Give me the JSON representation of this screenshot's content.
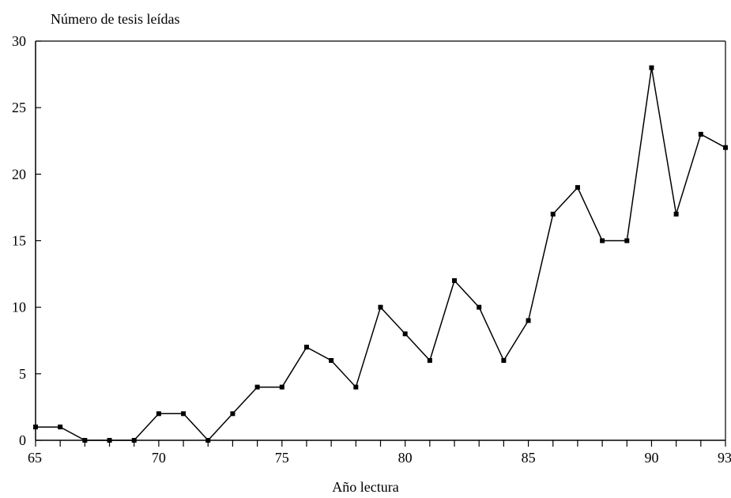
{
  "chart_data": {
    "type": "line",
    "ylabel": "Número de tesis leídas",
    "xlabel": "Año lectura",
    "xlim": [
      65,
      93
    ],
    "ylim": [
      0,
      30
    ],
    "yticks": [
      0,
      5,
      10,
      15,
      20,
      25,
      30
    ],
    "xtick_labels": [
      65,
      70,
      75,
      80,
      85,
      90,
      93
    ],
    "grid": false,
    "series": [
      {
        "x": [
          65,
          66,
          67,
          68,
          69,
          70,
          71,
          72,
          73,
          74,
          75,
          76,
          77,
          78,
          79,
          80,
          81,
          82,
          83,
          84,
          85,
          86,
          87,
          88,
          89,
          90,
          91,
          92,
          93
        ],
        "values": [
          1,
          1,
          0,
          0,
          0,
          2,
          2,
          0,
          2,
          4,
          4,
          7,
          6,
          4,
          10,
          8,
          6,
          12,
          10,
          6,
          9,
          17,
          19,
          15,
          15,
          28,
          17,
          23,
          22
        ]
      }
    ]
  }
}
